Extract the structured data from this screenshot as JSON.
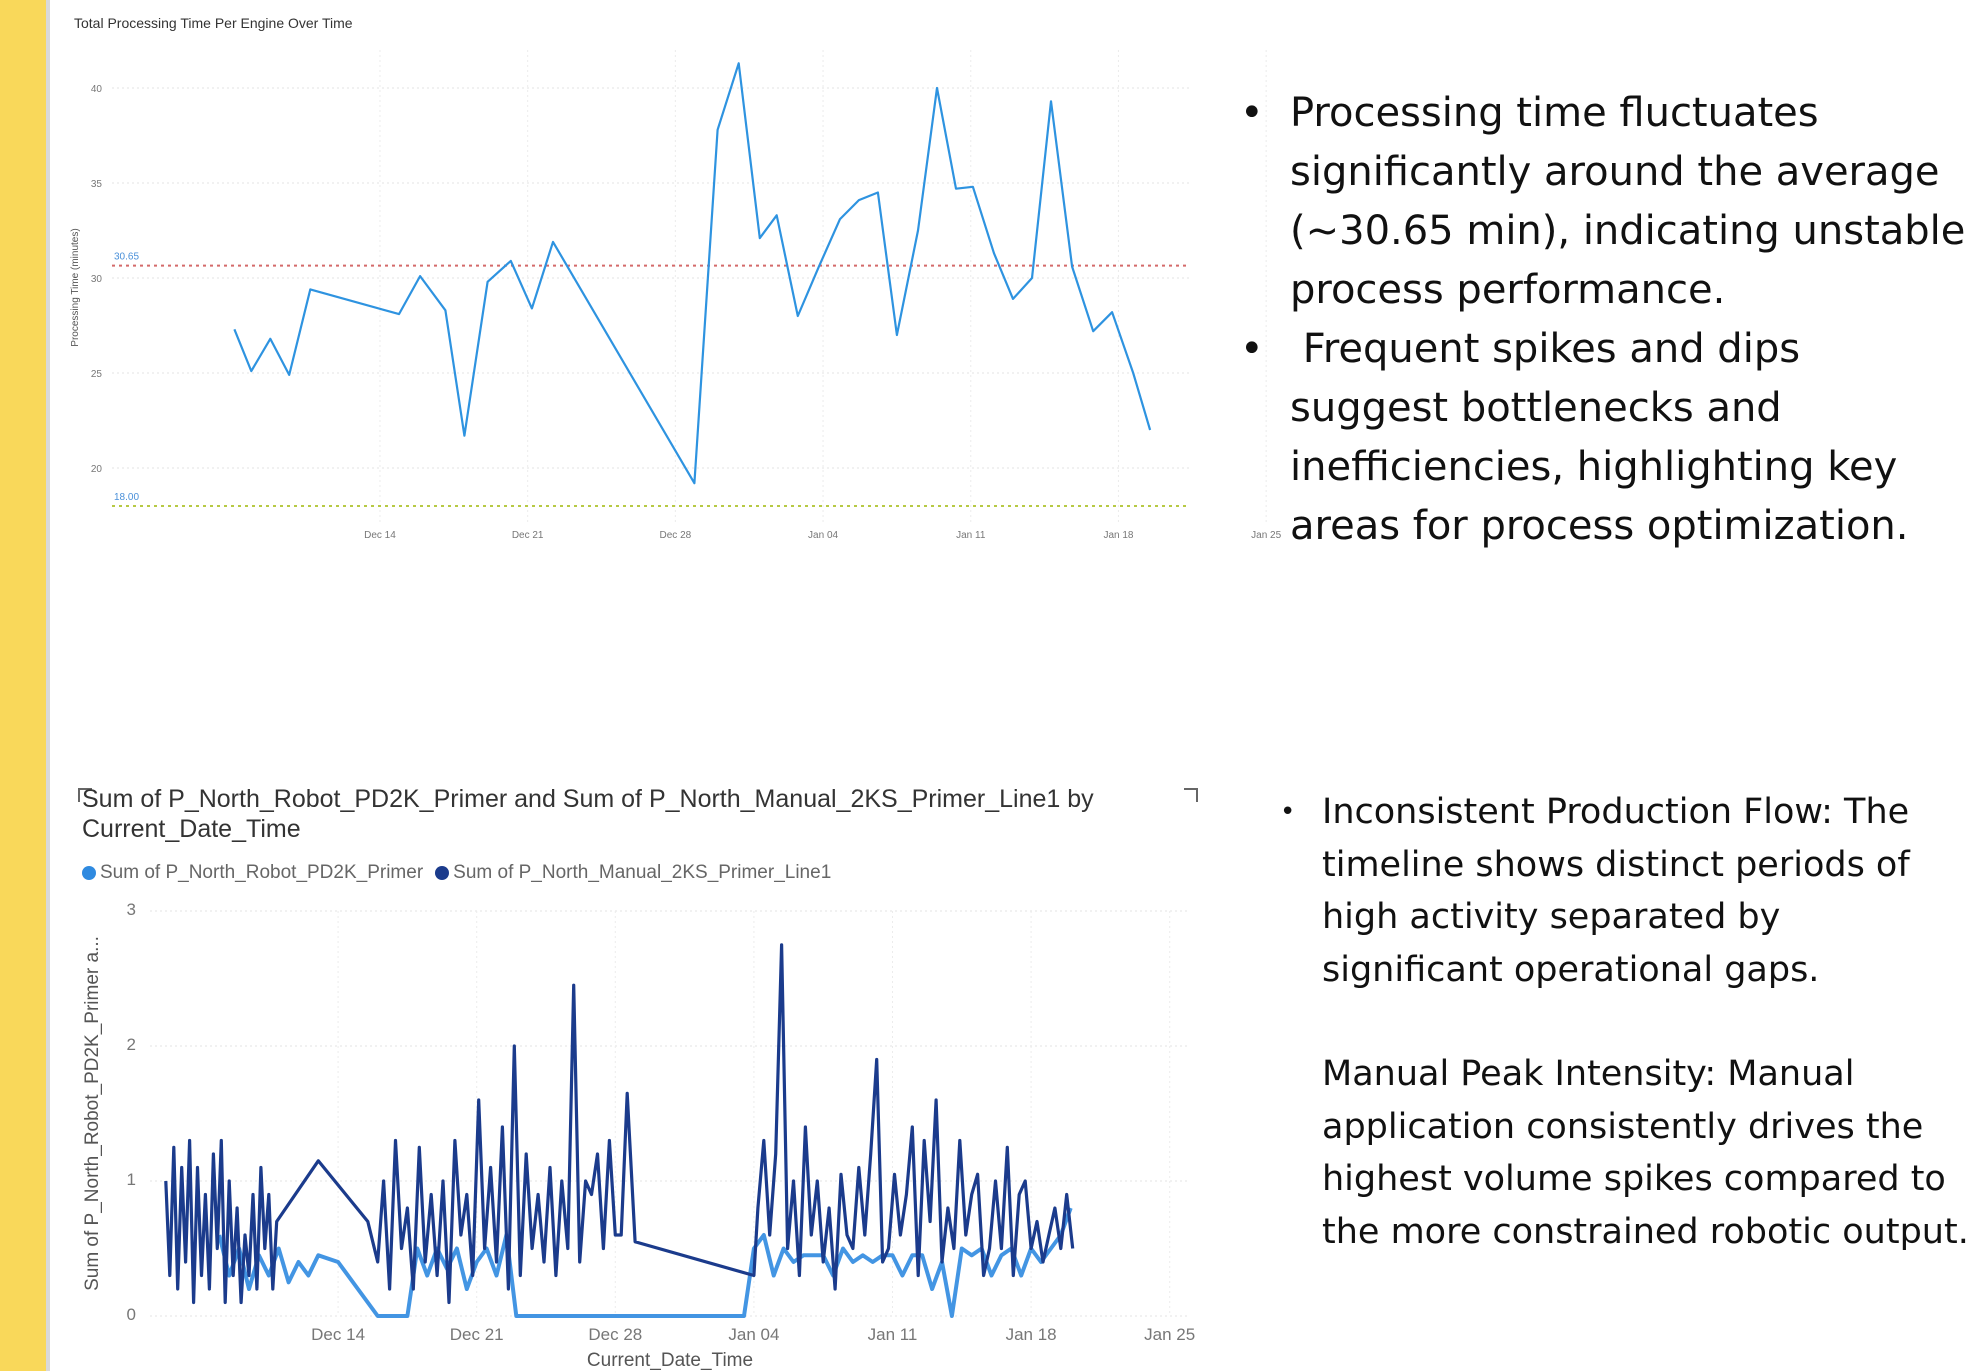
{
  "chart_data": [
    {
      "type": "line",
      "title": "Total Processing Time Per Engine Over Time",
      "ylabel": "Processing Time (minutes)",
      "xlabel": "",
      "ylim": [
        17,
        42
      ],
      "y_ticks": [
        20,
        25,
        30,
        35,
        40
      ],
      "x_ticks": [
        "Dec 14",
        "Dec 21",
        "Dec 28",
        "Jan 04",
        "Jan 11",
        "Jan 18",
        "Jan 25"
      ],
      "color": "#2e93e0",
      "reference_lines": [
        {
          "value": 30.65,
          "label": "30.65",
          "color": "#d46a6a"
        },
        {
          "value": 18.0,
          "label": "18.00",
          "color": "#b7c944"
        }
      ],
      "x": [
        -6.9,
        -6.1,
        -5.2,
        -4.3,
        -3.3,
        0.9,
        1.9,
        3.1,
        4.0,
        5.1,
        6.2,
        7.2,
        8.2,
        14.9,
        16.0,
        17.0,
        18.0,
        18.8,
        19.8,
        20.8,
        21.8,
        22.7,
        23.6,
        24.5,
        25.5,
        26.4,
        27.3,
        28.1,
        29.1,
        30.0,
        30.9,
        31.8,
        32.8,
        33.8,
        34.7,
        35.7,
        36.5
      ],
      "y": [
        27.3,
        25.1,
        26.8,
        24.9,
        29.4,
        28.1,
        30.1,
        28.3,
        21.7,
        29.8,
        30.9,
        28.4,
        31.9,
        19.2,
        37.8,
        41.3,
        32.1,
        33.3,
        28.0,
        30.6,
        33.1,
        34.1,
        34.5,
        27.0,
        32.5,
        40.0,
        34.7,
        34.8,
        31.3,
        28.9,
        30.0,
        39.3,
        30.6,
        27.2,
        28.2,
        25.0,
        22.0
      ],
      "x_origin": "Dec 14 = 0 days"
    },
    {
      "type": "line",
      "title": "Sum of P_North_Robot_PD2K_Primer and Sum of P_North_Manual_2KS_Primer_Line1 by Current_Date_Time",
      "xlabel": "Current_Date_Time",
      "ylabel": "Sum of P_North_Robot_PD2K_Primer a...",
      "ylim": [
        0,
        3
      ],
      "y_ticks": [
        0,
        1,
        2,
        3
      ],
      "x_ticks": [
        "Dec 14",
        "Dec 21",
        "Dec 28",
        "Jan 04",
        "Jan 11",
        "Jan 18",
        "Jan 25"
      ],
      "series": [
        {
          "name": "Sum of P_North_Robot_PD2K_Primer",
          "color": "#2f8ae0",
          "x": [
            -6.0,
            -5.5,
            -5.0,
            -4.5,
            -4.0,
            -3.5,
            -3.0,
            -2.5,
            -2.0,
            -1.5,
            -1.0,
            0.0,
            1.0,
            2.0,
            3.0,
            3.5,
            4.0,
            4.5,
            5.0,
            5.5,
            6.0,
            6.5,
            7.0,
            7.5,
            8.0,
            8.5,
            9.0,
            9.5,
            10.0,
            20.5,
            21.0,
            21.5,
            22.0,
            22.5,
            23.0,
            23.5,
            24.0,
            24.5,
            25.0,
            25.5,
            26.0,
            26.5,
            27.0,
            27.5,
            28.0,
            28.5,
            29.0,
            29.5,
            30.0,
            30.5,
            31.0,
            31.5,
            32.0,
            32.5,
            33.0,
            33.5,
            34.0,
            34.5,
            35.0,
            35.5,
            36.0,
            36.5,
            37.0
          ],
          "y": [
            0.6,
            0.3,
            0.5,
            0.2,
            0.45,
            0.3,
            0.5,
            0.25,
            0.4,
            0.3,
            0.45,
            0.4,
            0.2,
            0.0,
            0.0,
            0.0,
            0.5,
            0.3,
            0.5,
            0.35,
            0.5,
            0.2,
            0.4,
            0.5,
            0.3,
            0.6,
            0.0,
            0.0,
            0.0,
            0.0,
            0.5,
            0.6,
            0.3,
            0.5,
            0.4,
            0.45,
            0.45,
            0.45,
            0.3,
            0.5,
            0.4,
            0.45,
            0.4,
            0.45,
            0.45,
            0.3,
            0.45,
            0.45,
            0.2,
            0.4,
            0.0,
            0.5,
            0.45,
            0.5,
            0.3,
            0.45,
            0.5,
            0.3,
            0.5,
            0.4,
            0.5,
            0.6,
            0.8
          ]
        },
        {
          "name": "Sum of P_North_Manual_2KS_Primer_Line1",
          "color": "#1b3b8c",
          "x": [
            -8.7,
            -8.5,
            -8.3,
            -8.1,
            -7.9,
            -7.7,
            -7.5,
            -7.3,
            -7.1,
            -6.9,
            -6.7,
            -6.5,
            -6.3,
            -6.1,
            -5.9,
            -5.7,
            -5.5,
            -5.3,
            -5.1,
            -4.9,
            -4.7,
            -4.5,
            -4.3,
            -4.1,
            -3.9,
            -3.7,
            -3.5,
            -3.3,
            -3.1,
            -1.0,
            1.5,
            2.0,
            2.3,
            2.6,
            2.9,
            3.2,
            3.5,
            3.8,
            4.1,
            4.4,
            4.7,
            5.0,
            5.3,
            5.6,
            5.9,
            6.2,
            6.5,
            6.8,
            7.1,
            7.4,
            7.7,
            8.0,
            8.3,
            8.6,
            8.9,
            9.2,
            9.5,
            9.8,
            10.1,
            10.4,
            10.7,
            11.0,
            11.3,
            11.6,
            11.9,
            12.2,
            12.5,
            12.8,
            13.1,
            13.4,
            13.7,
            14.0,
            14.3,
            14.6,
            15.0,
            21.0,
            21.2,
            21.5,
            21.8,
            22.1,
            22.4,
            22.7,
            23.0,
            23.3,
            23.6,
            23.9,
            24.2,
            24.5,
            24.8,
            25.1,
            25.4,
            25.7,
            26.0,
            26.3,
            26.6,
            26.9,
            27.2,
            27.5,
            27.8,
            28.1,
            28.4,
            28.7,
            29.0,
            29.3,
            29.6,
            29.9,
            30.2,
            30.5,
            30.8,
            31.1,
            31.4,
            31.7,
            32.0,
            32.3,
            32.6,
            32.9,
            33.2,
            33.5,
            33.8,
            34.1,
            34.4,
            34.7,
            35.0,
            35.3,
            35.6,
            35.9,
            36.2,
            36.5,
            36.8,
            37.1
          ],
          "y": [
            1.0,
            0.3,
            1.25,
            0.2,
            1.1,
            0.4,
            1.3,
            0.1,
            1.1,
            0.3,
            0.9,
            0.2,
            1.2,
            0.5,
            1.3,
            0.1,
            1.0,
            0.3,
            0.8,
            0.1,
            0.6,
            0.3,
            0.9,
            0.2,
            1.1,
            0.5,
            0.9,
            0.2,
            0.7,
            1.15,
            0.7,
            0.4,
            1.0,
            0.2,
            1.3,
            0.5,
            0.8,
            0.2,
            1.25,
            0.4,
            0.9,
            0.3,
            1.0,
            0.1,
            1.3,
            0.6,
            0.9,
            0.3,
            1.6,
            0.5,
            1.1,
            0.4,
            1.4,
            0.2,
            2.0,
            0.3,
            1.2,
            0.5,
            0.9,
            0.4,
            1.1,
            0.3,
            1.0,
            0.5,
            2.45,
            0.4,
            1.0,
            0.9,
            1.2,
            0.5,
            1.3,
            0.6,
            0.6,
            1.65,
            0.55,
            0.3,
            0.8,
            1.3,
            0.6,
            1.2,
            2.75,
            0.5,
            1.0,
            0.3,
            1.4,
            0.6,
            1.0,
            0.4,
            0.8,
            0.2,
            1.05,
            0.6,
            0.5,
            1.1,
            0.6,
            1.2,
            1.9,
            0.4,
            0.5,
            1.05,
            0.6,
            0.9,
            1.4,
            0.3,
            1.3,
            0.7,
            1.6,
            0.4,
            0.8,
            0.5,
            1.3,
            0.6,
            0.9,
            1.05,
            0.3,
            0.5,
            1.0,
            0.5,
            1.25,
            0.3,
            0.9,
            1.0,
            0.5,
            0.7,
            0.4,
            0.6,
            0.8,
            0.5,
            0.9,
            0.5
          ]
        }
      ]
    }
  ],
  "notes_top": [
    "Processing time fluctuates significantly around the average (~30.65 min), indicating unstable process performance.",
    " Frequent spikes and dips suggest bottlenecks and inefficiencies, highlighting key areas for process optimization."
  ],
  "notes_bottom": {
    "item1": "Inconsistent Production Flow: The timeline shows distinct periods of high activity separated by significant operational gaps.",
    "item2": "Manual Peak Intensity: Manual application consistently drives the highest volume spikes compared to the more constrained robotic output."
  },
  "bullet": "•"
}
